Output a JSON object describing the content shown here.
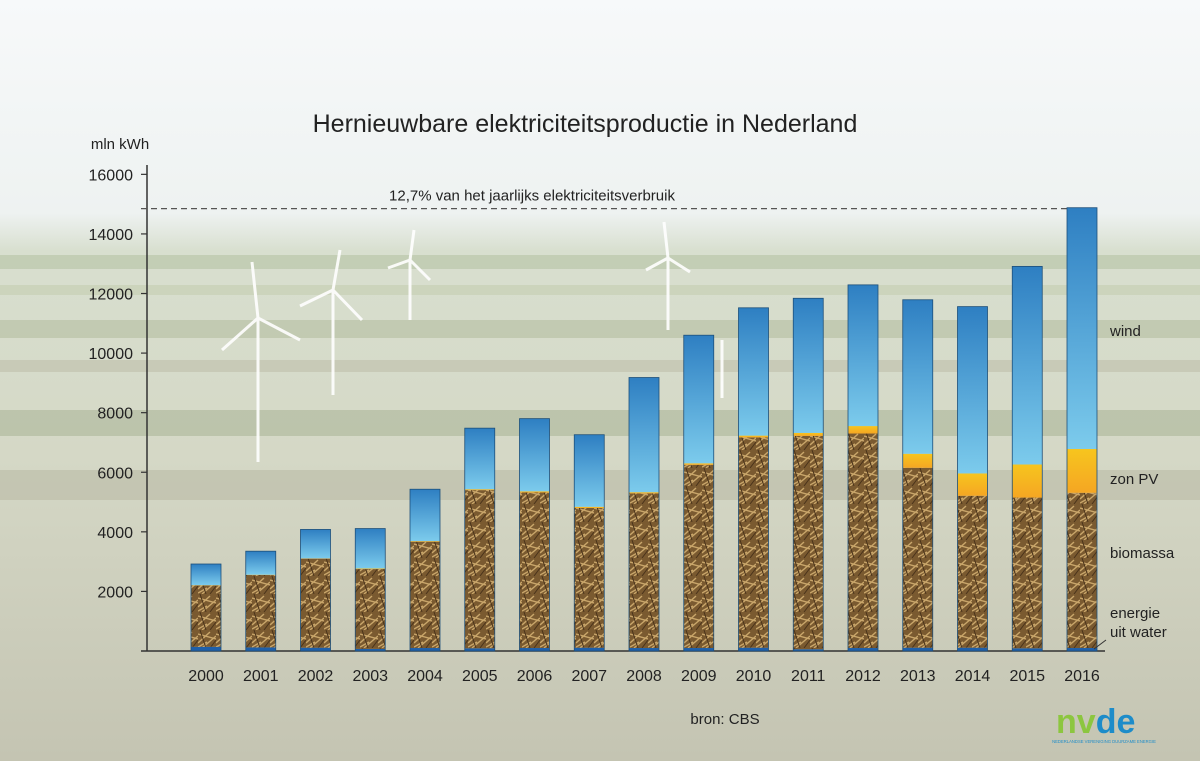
{
  "chart_data": {
    "type": "bar",
    "stacked": true,
    "title": "Hernieuwbare elektriciteitsproductie in Nederland",
    "ylabel": "mln kWh",
    "ylim": [
      0,
      16000
    ],
    "yticks": [
      2000,
      4000,
      6000,
      8000,
      10000,
      12000,
      14000,
      16000
    ],
    "categories": [
      "2000",
      "2001",
      "2002",
      "2003",
      "2004",
      "2005",
      "2006",
      "2007",
      "2008",
      "2009",
      "2010",
      "2011",
      "2012",
      "2013",
      "2014",
      "2015",
      "2016"
    ],
    "series": [
      {
        "name": "energie uit water",
        "color": "#1f5fa8",
        "values": [
          140,
          120,
          110,
          70,
          100,
          90,
          100,
          110,
          100,
          100,
          110,
          60,
          100,
          110,
          110,
          90,
          100
        ]
      },
      {
        "name": "biomassa",
        "color": "#8a6a3c",
        "values": [
          2060,
          2430,
          2990,
          2680,
          3570,
          5310,
          5220,
          4690,
          5190,
          6150,
          7060,
          7160,
          7200,
          6040,
          5100,
          5060,
          5210
        ]
      },
      {
        "name": "zon PV",
        "color": "#f7b81e",
        "values": [
          10,
          10,
          10,
          20,
          20,
          30,
          40,
          40,
          40,
          50,
          60,
          100,
          250,
          470,
          750,
          1110,
          1470
        ]
      },
      {
        "name": "wind",
        "color": "#4aa5da",
        "values": [
          710,
          790,
          970,
          1340,
          1740,
          2050,
          2440,
          2420,
          3850,
          4300,
          4290,
          4520,
          4740,
          5170,
          5600,
          6650,
          8100
        ]
      }
    ],
    "reference_line": {
      "value": 14850,
      "label": "12,7% van het jaarlijks elektriciteitsverbruik"
    },
    "source": "bron: CBS",
    "legend_placement": "right, aligned with segments",
    "grid": false
  },
  "legend": {
    "wind": "wind",
    "zon_pv": "zon PV",
    "biomassa": "biomassa",
    "water_line1": "energie",
    "water_line2": "uit water"
  },
  "logo": {
    "text": "nvde",
    "subtitle": "NEDERLANDSE VERENIGING DUURZAME ENERGIE",
    "color_n": "#8cc63f",
    "color_de": "#1d8cc9"
  },
  "colors": {
    "sky": "#e6ecea",
    "field": "#c9cfb5",
    "axis": "#333333"
  }
}
